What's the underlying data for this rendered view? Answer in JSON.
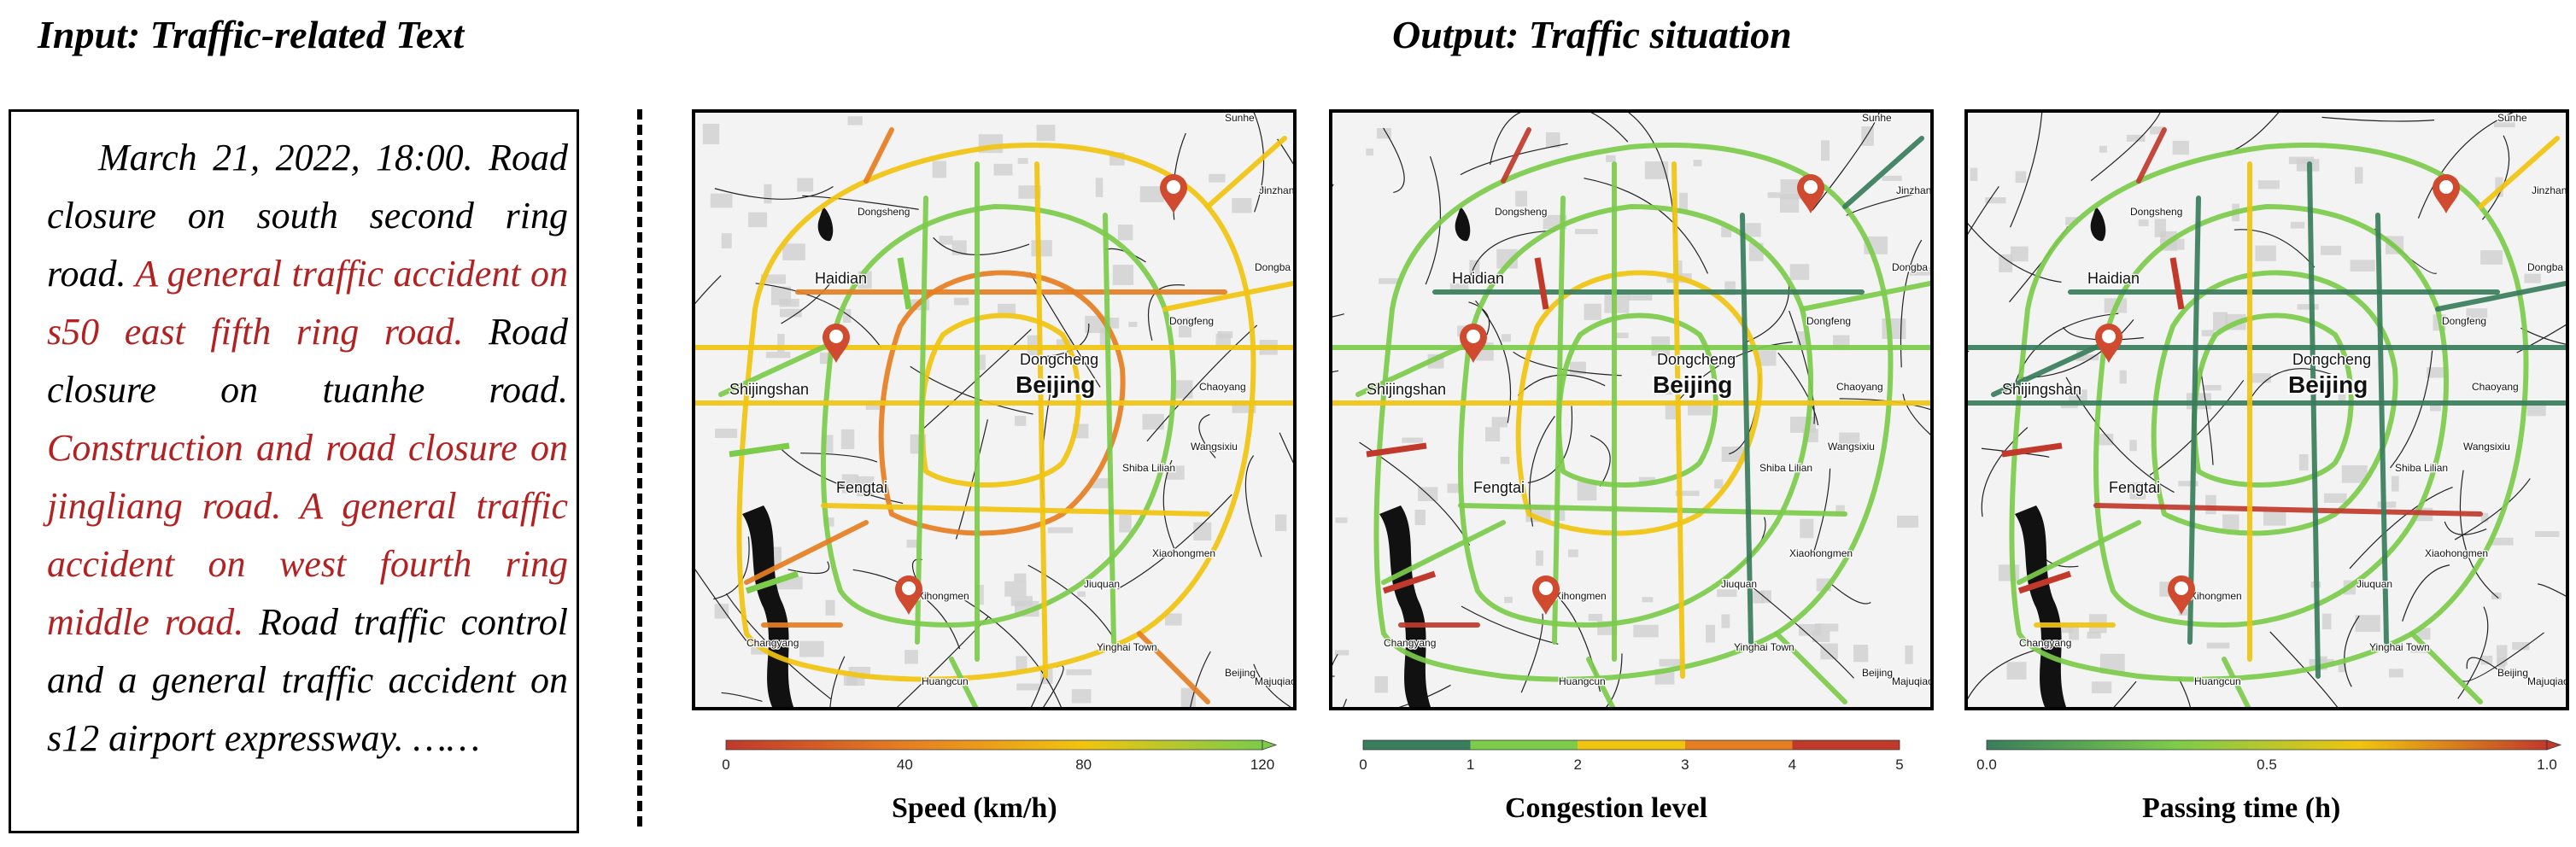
{
  "input_heading": "Input: Traffic-related Text",
  "output_heading": "Output: Traffic situation",
  "input_text": {
    "seg1": "March 21, 2022, 18:00. Road closure on south second ring road. ",
    "seg2": "A general traffic accident on s50 east fifth ring road.",
    "seg3": " Road closure on tuanhe road. ",
    "seg4": "Construction and road closure on jingliang road. A general traffic accident on west fourth ring middle road.",
    "seg5": " Road traffic control and a general traffic accident on s12 airport expressway. ……"
  },
  "map_labels": [
    "Haidian",
    "Dongsheng",
    "Dongcheng",
    "Beijing",
    "Shijingshan",
    "Fengtai",
    "Wangsixiu",
    "Xiaohongmen",
    "Xihongmen",
    "Changyang",
    "Yinghai Town",
    "Huangcun",
    "Dongba",
    "Jinzhan",
    "Dongfeng",
    "Chaoyang",
    "Sunhe",
    "Majuqiao",
    "Shiba Lilian",
    "Jiuquan",
    "Beijing"
  ],
  "panels": [
    {
      "id": "speed",
      "colorbar_label": "Speed (km/h)",
      "ticks": [
        "0",
        "40",
        "80",
        "120"
      ],
      "colors": [
        "#c0392b",
        "#e67e22",
        "#f1c40f",
        "#7ccb4b"
      ]
    },
    {
      "id": "congestion",
      "colorbar_label": "Congestion level",
      "ticks": [
        "0",
        "1",
        "2",
        "3",
        "4",
        "5"
      ],
      "colors": [
        "#3a7d5c",
        "#7ccb4b",
        "#f1c40f",
        "#e67e22",
        "#c0392b"
      ]
    },
    {
      "id": "time",
      "colorbar_label": "Passing time (h)",
      "ticks": [
        "0.0",
        "0.5",
        "1.0"
      ],
      "colors": [
        "#3a7d5c",
        "#7ccb4b",
        "#f1c40f",
        "#c0392b"
      ]
    }
  ]
}
